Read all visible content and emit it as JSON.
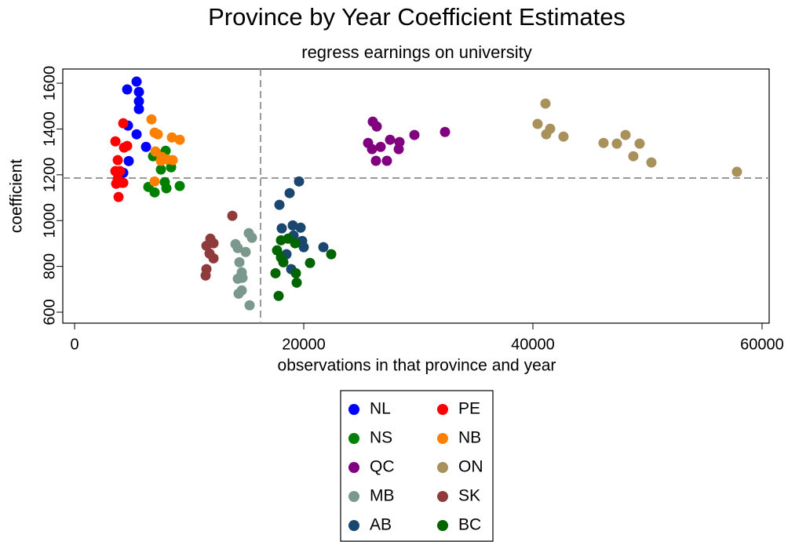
{
  "chart_data": {
    "type": "scatter",
    "title": "Province by Year Coefficient Estimates",
    "subtitle": "regress earnings on university",
    "x_label": "observations in that province and year",
    "y_label": "coefficient",
    "xlim": [
      -1030,
      60620
    ],
    "ylim": [
      552,
      1662
    ],
    "xticks": [
      0,
      20000,
      40000,
      60000
    ],
    "yticks": [
      600,
      800,
      1000,
      1200,
      1400,
      1600
    ],
    "reference_lines": {
      "x": 16230,
      "y": 1186
    },
    "series": [
      {
        "name": "NL",
        "color": "#0000ff",
        "x": [
          5411,
          4589,
          5616,
          5616,
          5616,
          4658,
          5411,
          6233,
          4726,
          4247
        ],
        "values": [
          1607,
          1573,
          1562,
          1521,
          1487,
          1415,
          1377,
          1322,
          1260,
          1209
        ]
      },
      {
        "name": "PE",
        "color": "#ff0000",
        "x": [
          4247,
          4589,
          4315,
          3562,
          3767,
          3562,
          3973,
          3767,
          4247,
          3630,
          3836,
          4110
        ],
        "values": [
          1425,
          1326,
          1319,
          1346,
          1264,
          1216,
          1216,
          1182,
          1165,
          1161,
          1103,
          1165
        ]
      },
      {
        "name": "NS",
        "color": "#008000",
        "x": [
          6849,
          7945,
          7534,
          8425,
          7877,
          6438,
          6986,
          8014,
          9178
        ],
        "values": [
          1281,
          1305,
          1223,
          1233,
          1168,
          1147,
          1123,
          1141,
          1151
        ]
      },
      {
        "name": "NB",
        "color": "#ff8000",
        "x": [
          6712,
          6986,
          7260,
          7055,
          7603,
          8082,
          8493,
          9178,
          8562,
          7534,
          6986
        ],
        "values": [
          1442,
          1384,
          1377,
          1302,
          1278,
          1267,
          1363,
          1353,
          1264,
          1261,
          1171
        ]
      },
      {
        "name": "QC",
        "color": "#800080",
        "x": [
          26027,
          26370,
          25616,
          25959,
          26712,
          27534,
          28356,
          28288,
          26301,
          27260,
          29658,
          32329
        ],
        "values": [
          1432,
          1411,
          1339,
          1312,
          1322,
          1353,
          1343,
          1312,
          1261,
          1261,
          1374,
          1387
        ]
      },
      {
        "name": "ON",
        "color": "#a8915a",
        "x": [
          41096,
          40411,
          41507,
          41164,
          42671,
          46164,
          47329,
          48082,
          49315,
          48767,
          50342,
          57808
        ],
        "values": [
          1511,
          1422,
          1401,
          1377,
          1367,
          1339,
          1336,
          1374,
          1336,
          1281,
          1254,
          1213
        ]
      },
      {
        "name": "MB",
        "color": "#7a988c",
        "x": [
          15205,
          15479,
          14041,
          14247,
          14932,
          14384,
          14589,
          14247,
          14658,
          14589,
          14315,
          15274
        ],
        "values": [
          945,
          925,
          897,
          880,
          863,
          818,
          774,
          746,
          750,
          695,
          681,
          630
        ]
      },
      {
        "name": "SK",
        "color": "#8f3b3b",
        "x": [
          13767,
          11849,
          12123,
          11507,
          11781,
          12123,
          11507,
          11438
        ],
        "values": [
          1021,
          921,
          901,
          890,
          856,
          835,
          788,
          760
        ]
      },
      {
        "name": "AB",
        "color": "#1a476f",
        "x": [
          19589,
          18767,
          17877,
          19041,
          19726,
          18082,
          19110,
          19863,
          20000,
          21712,
          18493,
          18904
        ],
        "values": [
          1171,
          1120,
          1069,
          979,
          969,
          966,
          935,
          911,
          884,
          884,
          853,
          788
        ]
      },
      {
        "name": "BC",
        "color": "#006400",
        "x": [
          18014,
          18630,
          19247,
          17671,
          18014,
          18219,
          20548,
          22397,
          17534,
          19315,
          19384,
          17808
        ],
        "values": [
          914,
          921,
          901,
          870,
          839,
          818,
          815,
          853,
          770,
          770,
          729,
          671
        ]
      }
    ]
  }
}
